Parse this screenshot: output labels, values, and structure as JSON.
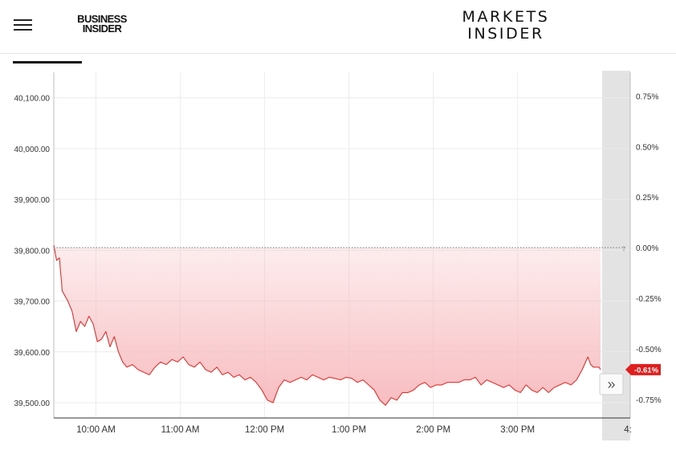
{
  "header": {
    "menu_icon": "hamburger-menu-icon",
    "business_insider_logo": {
      "line1": "BUSINESS",
      "line2": "INSIDER"
    },
    "markets_insider_logo": {
      "line1": "MARKETS",
      "line2": "INSIDER"
    }
  },
  "chart_data": {
    "type": "area",
    "title": "",
    "x_tick_labels": [
      "10:00 AM",
      "11:00 AM",
      "12:00 PM",
      "1:00 PM",
      "2:00 PM",
      "3:00 PM",
      "4:"
    ],
    "left_axis": {
      "tick_labels": [
        "40,100.00",
        "40,000.00",
        "39,900.00",
        "39,800.00",
        "39,700.00",
        "39,600.00",
        "39,500.00"
      ],
      "tick_values": [
        40100,
        40000,
        39900,
        39800,
        39700,
        39600,
        39500
      ],
      "range": [
        39470,
        40150
      ]
    },
    "right_axis": {
      "tick_labels": [
        "0.75%",
        "0.50%",
        "0.25%",
        "0.00%",
        "-0.25%",
        "-0.50%",
        "-0.75%"
      ],
      "tick_values": [
        0.75,
        0.5,
        0.25,
        0,
        -0.25,
        -0.5,
        -0.75
      ]
    },
    "baseline_value": 39805,
    "current_change_label": "-0.61%",
    "line_color": "#e8302b",
    "fill_color": "#f7b9bd",
    "grid": true,
    "series": [
      {
        "x": [
          "09:30",
          "09:32",
          "09:34",
          "09:36",
          "09:38",
          "09:40",
          "09:43",
          "09:46",
          "09:49",
          "09:52",
          "09:55",
          "09:58",
          "10:01",
          "10:04",
          "10:07",
          "10:10",
          "10:13",
          "10:16",
          "10:19",
          "10:22",
          "10:26",
          "10:30",
          "10:34",
          "10:38",
          "10:42",
          "10:46",
          "10:50",
          "10:54",
          "10:58",
          "11:02",
          "11:06",
          "11:10",
          "11:14",
          "11:18",
          "11:22",
          "11:26",
          "11:30",
          "11:34",
          "11:38",
          "11:42",
          "11:46",
          "11:50",
          "11:54",
          "11:58",
          "12:02",
          "12:06",
          "12:10",
          "12:14",
          "12:18",
          "12:22",
          "12:26",
          "12:30",
          "12:34",
          "12:38",
          "12:42",
          "12:46",
          "12:50",
          "12:54",
          "12:58",
          "13:02",
          "13:06",
          "13:10",
          "13:14",
          "13:18",
          "13:22",
          "13:26",
          "13:30",
          "13:34",
          "13:38",
          "13:42",
          "13:46",
          "13:50",
          "13:54",
          "13:58",
          "14:02",
          "14:06",
          "14:10",
          "14:14",
          "14:18",
          "14:22",
          "14:26",
          "14:30",
          "14:34",
          "14:38",
          "14:42",
          "14:46",
          "14:50",
          "14:54",
          "14:58",
          "15:02",
          "15:06",
          "15:10",
          "15:14",
          "15:18",
          "15:22",
          "15:26",
          "15:30",
          "15:34",
          "15:38",
          "15:42",
          "15:46",
          "15:50",
          "15:52",
          "15:54",
          "15:56",
          "15:58",
          "15:59"
        ],
        "y": [
          39810,
          39780,
          39785,
          39720,
          39710,
          39700,
          39680,
          39640,
          39660,
          39650,
          39670,
          39655,
          39620,
          39625,
          39640,
          39610,
          39630,
          39600,
          39580,
          39570,
          39575,
          39565,
          39560,
          39555,
          39570,
          39580,
          39575,
          39585,
          39580,
          39590,
          39575,
          39570,
          39580,
          39565,
          39560,
          39570,
          39555,
          39560,
          39550,
          39555,
          39545,
          39550,
          39540,
          39525,
          39505,
          39500,
          39530,
          39545,
          39540,
          39545,
          39550,
          39545,
          39555,
          39550,
          39545,
          39550,
          39548,
          39545,
          39550,
          39548,
          39540,
          39545,
          39535,
          39525,
          39505,
          39495,
          39510,
          39505,
          39520,
          39520,
          39525,
          39535,
          39540,
          39530,
          39535,
          39535,
          39540,
          39540,
          39540,
          39545,
          39545,
          39550,
          39535,
          39545,
          39540,
          39535,
          39530,
          39535,
          39525,
          39520,
          39535,
          39525,
          39520,
          39530,
          39520,
          39530,
          39535,
          39540,
          39535,
          39545,
          39565,
          39590,
          39575,
          39570,
          39570,
          39570,
          39565
        ]
      }
    ]
  },
  "controls": {
    "expand_icon": "double-chevron-right-icon",
    "expand_glyph": "»"
  }
}
